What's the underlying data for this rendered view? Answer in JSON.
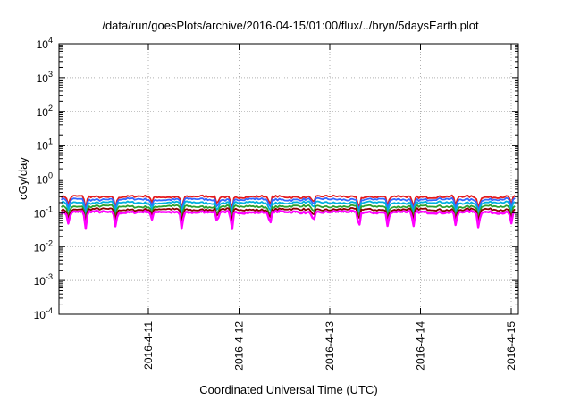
{
  "chart_data": {
    "type": "line",
    "title": "/data/run/goesPlots/archive/2016-04-15/01:00/flux/../bryn/5daysEarth.plot",
    "xlabel": "Coordinated Universal Time (UTC)",
    "ylabel": "cGy/day",
    "yscale": "log",
    "ylim": [
      0.0001,
      10000
    ],
    "xlim": [
      "2016-04-10 01:00",
      "2016-04-15 01:00"
    ],
    "y_ticks": [
      {
        "base": "10",
        "exp": "-4"
      },
      {
        "base": "10",
        "exp": "-3"
      },
      {
        "base": "10",
        "exp": "-2"
      },
      {
        "base": "10",
        "exp": "-1"
      },
      {
        "base": "10",
        "exp": "0"
      },
      {
        "base": "10",
        "exp": "1"
      },
      {
        "base": "10",
        "exp": "2"
      },
      {
        "base": "10",
        "exp": "3"
      },
      {
        "base": "10",
        "exp": "4"
      }
    ],
    "x_ticks": [
      "2016-4-11",
      "2016-4-12",
      "2016-4-13",
      "2016-4-14",
      "2016-4-15"
    ],
    "grid": true,
    "series": [
      {
        "color": "#e41a1c",
        "base": 0.3,
        "values": [
          0.3,
          0.31,
          0.29,
          0.32,
          0.3,
          0.3
        ]
      },
      {
        "color": "#3366ff",
        "base": 0.25,
        "values": [
          0.25,
          0.26,
          0.24,
          0.27,
          0.25,
          0.25
        ]
      },
      {
        "color": "#00b0e0",
        "base": 0.2,
        "values": [
          0.2,
          0.21,
          0.19,
          0.21,
          0.2,
          0.2
        ]
      },
      {
        "color": "#2ca02c",
        "base": 0.155,
        "values": [
          0.155,
          0.16,
          0.15,
          0.16,
          0.155,
          0.155
        ]
      },
      {
        "color": "#8b0000",
        "base": 0.125,
        "values": [
          0.125,
          0.13,
          0.12,
          0.13,
          0.125,
          0.125
        ]
      },
      {
        "color": "#ff00ff",
        "base": 0.105,
        "values": [
          0.105,
          0.11,
          0.1,
          0.11,
          0.105,
          0.105
        ]
      }
    ],
    "dips": [
      {
        "day": 0.08,
        "depth": 0.45
      },
      {
        "day": 0.27,
        "depth": 0.55
      },
      {
        "day": 0.6,
        "depth": 0.5
      },
      {
        "day": 1.0,
        "depth": 0.35
      },
      {
        "day": 1.33,
        "depth": 0.55
      },
      {
        "day": 1.72,
        "depth": 0.42
      },
      {
        "day": 1.88,
        "depth": 0.6
      },
      {
        "day": 2.3,
        "depth": 0.5
      },
      {
        "day": 2.78,
        "depth": 0.38
      },
      {
        "day": 3.28,
        "depth": 0.55
      },
      {
        "day": 3.6,
        "depth": 0.5
      },
      {
        "day": 3.88,
        "depth": 0.55
      },
      {
        "day": 4.35,
        "depth": 0.5
      },
      {
        "day": 4.6,
        "depth": 0.55
      },
      {
        "day": 4.96,
        "depth": 0.42
      }
    ]
  }
}
